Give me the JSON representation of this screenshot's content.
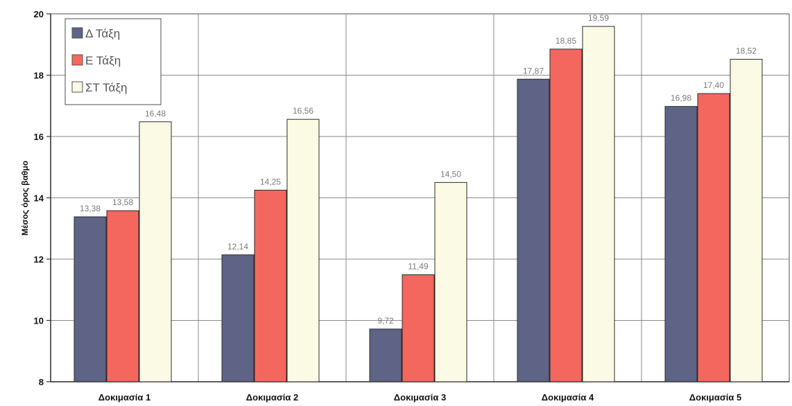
{
  "chart_data": {
    "type": "bar",
    "title": "",
    "xlabel": "",
    "ylabel": "Μέσος όρος βαθμο",
    "ylim": [
      8,
      20
    ],
    "yticks": [
      "8",
      "10",
      "12",
      "14",
      "16",
      "18",
      "20"
    ],
    "grid": true,
    "legend_position": "top-left",
    "categories": [
      "Δοκιμασία 1",
      "Δοκιμασία 2",
      "Δοκιμασία 3",
      "Δοκιμασία 4",
      "Δοκιμασία 5"
    ],
    "series": [
      {
        "name": "Δ Τάξη",
        "color": "#5f6385",
        "values": [
          13.38,
          12.14,
          9.72,
          17.87,
          16.98
        ],
        "labels": [
          "13,38",
          "12,14",
          "9,72",
          "17,87",
          "16,98"
        ]
      },
      {
        "name": "Ε Τάξη",
        "color": "#f4675f",
        "values": [
          13.58,
          14.25,
          11.49,
          18.85,
          17.4
        ],
        "labels": [
          "13,58",
          "14,25",
          "11,49",
          "18,85",
          "17,40"
        ]
      },
      {
        "name": "ΣΤ Τάξη",
        "color": "#fbfae4",
        "values": [
          16.48,
          16.56,
          14.5,
          19.59,
          18.52
        ],
        "labels": [
          "16,48",
          "16,56",
          "14,50",
          "19,59",
          "18,52"
        ]
      }
    ]
  }
}
